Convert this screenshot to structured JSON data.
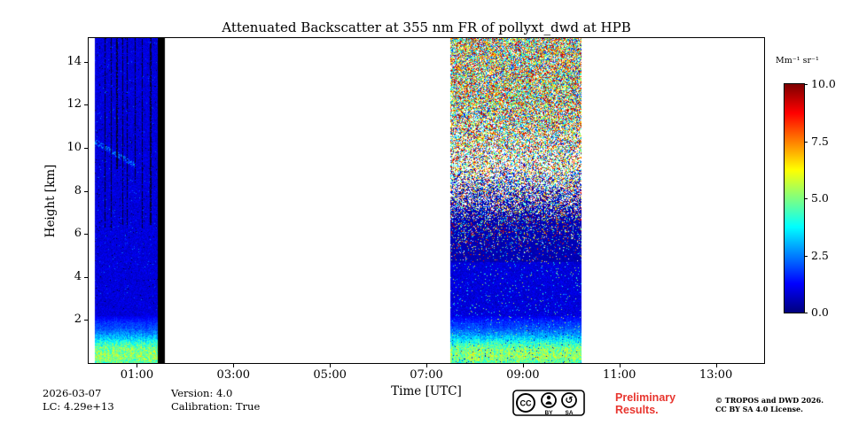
{
  "title": "Attenuated Backscatter at 355 nm FR of pollyxt_dwd at HPB",
  "axes": {
    "xlabel": "Time [UTC]",
    "ylabel": "Height [km]",
    "x_tick_labels": [
      "01:00",
      "03:00",
      "05:00",
      "07:00",
      "09:00",
      "11:00",
      "13:00"
    ],
    "x_tick_hours": [
      1,
      3,
      5,
      7,
      9,
      11,
      13
    ],
    "y_tick_labels": [
      "2",
      "4",
      "6",
      "8",
      "10",
      "12",
      "14"
    ],
    "y_tick_km": [
      2,
      4,
      6,
      8,
      10,
      12,
      14
    ]
  },
  "colorbar": {
    "label": "Mm⁻¹ sr⁻¹",
    "tick_labels": [
      "10.0",
      "7.5",
      "5.0",
      "2.5",
      "0.0"
    ],
    "tick_values": [
      10,
      7.5,
      5,
      2.5,
      0
    ],
    "min": 0,
    "max": 10,
    "colormap": "jet"
  },
  "footer": {
    "date": "2026-03-07",
    "lc": "LC: 4.29e+13",
    "version": "Version: 4.0",
    "calibration": "Calibration: True",
    "preliminary_line1": "Preliminary",
    "preliminary_line2": "Results.",
    "preliminary_color": "#e8352e",
    "copyright_line1": "© TROPOS and DWD 2026.",
    "copyright_line2": "CC BY SA 4.0 License."
  },
  "cc_badge": {
    "cc": "CC",
    "by": "BY",
    "sa": "SA",
    "sa_arrow_icon": "↺"
  },
  "chart_data": {
    "type": "heatmap",
    "title": "Attenuated Backscatter at 355 nm FR of pollyxt_dwd at HPB",
    "xlabel": "Time [UTC]",
    "ylabel": "Height [km]",
    "x_range_hours": [
      0,
      14
    ],
    "y_range_km": [
      0,
      15.1
    ],
    "value_range": [
      0,
      10
    ],
    "value_units": "Mm⁻¹ sr⁻¹",
    "colormap": "jet",
    "background_color": "#ffffff",
    "noise_seed": 7,
    "bl_top_km": 2.15,
    "bl_profile": [
      [
        0,
        4.6
      ],
      [
        0.25,
        5.2
      ],
      [
        0.6,
        5.0
      ],
      [
        0.9,
        4.2
      ],
      [
        1.1,
        3.4
      ],
      [
        1.35,
        2.6
      ],
      [
        1.6,
        2.0
      ],
      [
        1.9,
        1.6
      ],
      [
        2.15,
        1.1
      ]
    ],
    "ft_value": 0.9,
    "segments": [
      {
        "name": "measurement-block-1",
        "t_start": 0.12,
        "t_end": 1.42,
        "description": "Mostly clear blue free troposphere with green aerosol layer below ~2 km, thin dark vertical dropout streaks above ~6 km, faint descending layer near 10 km",
        "features": {
          "dark_streaks": [
            {
              "t": 0.33,
              "bottom_km": 6.3
            },
            {
              "t": 0.46,
              "bottom_km": 6.2
            },
            {
              "t": 0.58,
              "bottom_km": 9.0
            },
            {
              "t": 0.7,
              "bottom_km": 6.4
            },
            {
              "t": 0.79,
              "bottom_km": 6.3
            },
            {
              "t": 0.95,
              "bottom_km": 8.5
            },
            {
              "t": 1.1,
              "bottom_km": 6.2
            },
            {
              "t": 1.28,
              "bottom_km": 6.4
            }
          ],
          "descending_layer": {
            "t0": 0.12,
            "h0": 10.3,
            "t1": 0.95,
            "h1": 9.2,
            "value": 2.3
          }
        }
      },
      {
        "name": "no-data-black-column",
        "t_start": 1.42,
        "t_end": 1.58,
        "color": "#000000",
        "description": "Solid black column (no valid data)"
      },
      {
        "name": "measurement-block-2",
        "t_start": 7.5,
        "t_end": 10.22,
        "description": "Daytime block: boundary layer green band below ~2 km, blue up to ~4.7 km, dense multicoloured salt-and-pepper noise increasing with height above",
        "features": {
          "noise_base_km": 4.7
        }
      }
    ]
  }
}
